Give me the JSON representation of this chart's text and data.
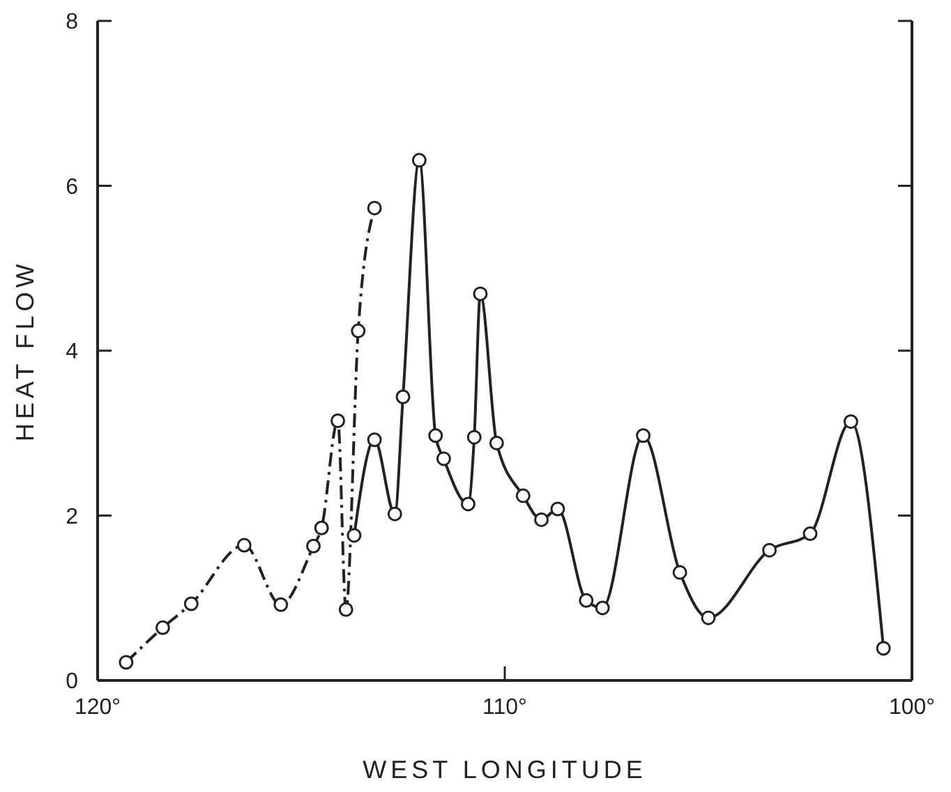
{
  "chart_data": {
    "type": "line",
    "xlabel": "WEST LONGITUDE",
    "ylabel": "HEAT FLOW",
    "xlim": [
      120,
      100
    ],
    "ylim": [
      0,
      8
    ],
    "xticks": [
      {
        "value": 120,
        "label": "120°"
      },
      {
        "value": 110,
        "label": "110°"
      },
      {
        "value": 100,
        "label": "100°"
      }
    ],
    "yticks": [
      0,
      2,
      4,
      6,
      8
    ],
    "grid": false,
    "marker": "circle",
    "series": [
      {
        "color": "#222222",
        "line_style": "dashdot",
        "x": [
          119.3,
          118.4,
          117.7,
          116.4,
          115.5,
          114.7,
          114.5,
          114.1,
          113.9,
          113.6,
          113.2
        ],
        "values": [
          0.22,
          0.64,
          0.93,
          1.64,
          0.92,
          1.63,
          1.85,
          3.15,
          0.86,
          4.24,
          5.73
        ]
      },
      {
        "color": "#222222",
        "line_style": "solid",
        "x": [
          113.7,
          113.2,
          112.7,
          112.5,
          112.1,
          111.7,
          111.5,
          110.9,
          110.75,
          110.6,
          110.2,
          109.55,
          109.1,
          108.7,
          108.0,
          107.6,
          106.6,
          105.7,
          105.0,
          103.5,
          102.5,
          101.5,
          100.7
        ],
        "values": [
          1.76,
          2.92,
          2.02,
          3.44,
          6.31,
          2.97,
          2.69,
          2.14,
          2.95,
          4.69,
          2.88,
          2.24,
          1.95,
          2.08,
          0.97,
          0.88,
          2.97,
          1.31,
          0.76,
          1.58,
          1.78,
          3.14,
          0.39
        ]
      }
    ]
  }
}
